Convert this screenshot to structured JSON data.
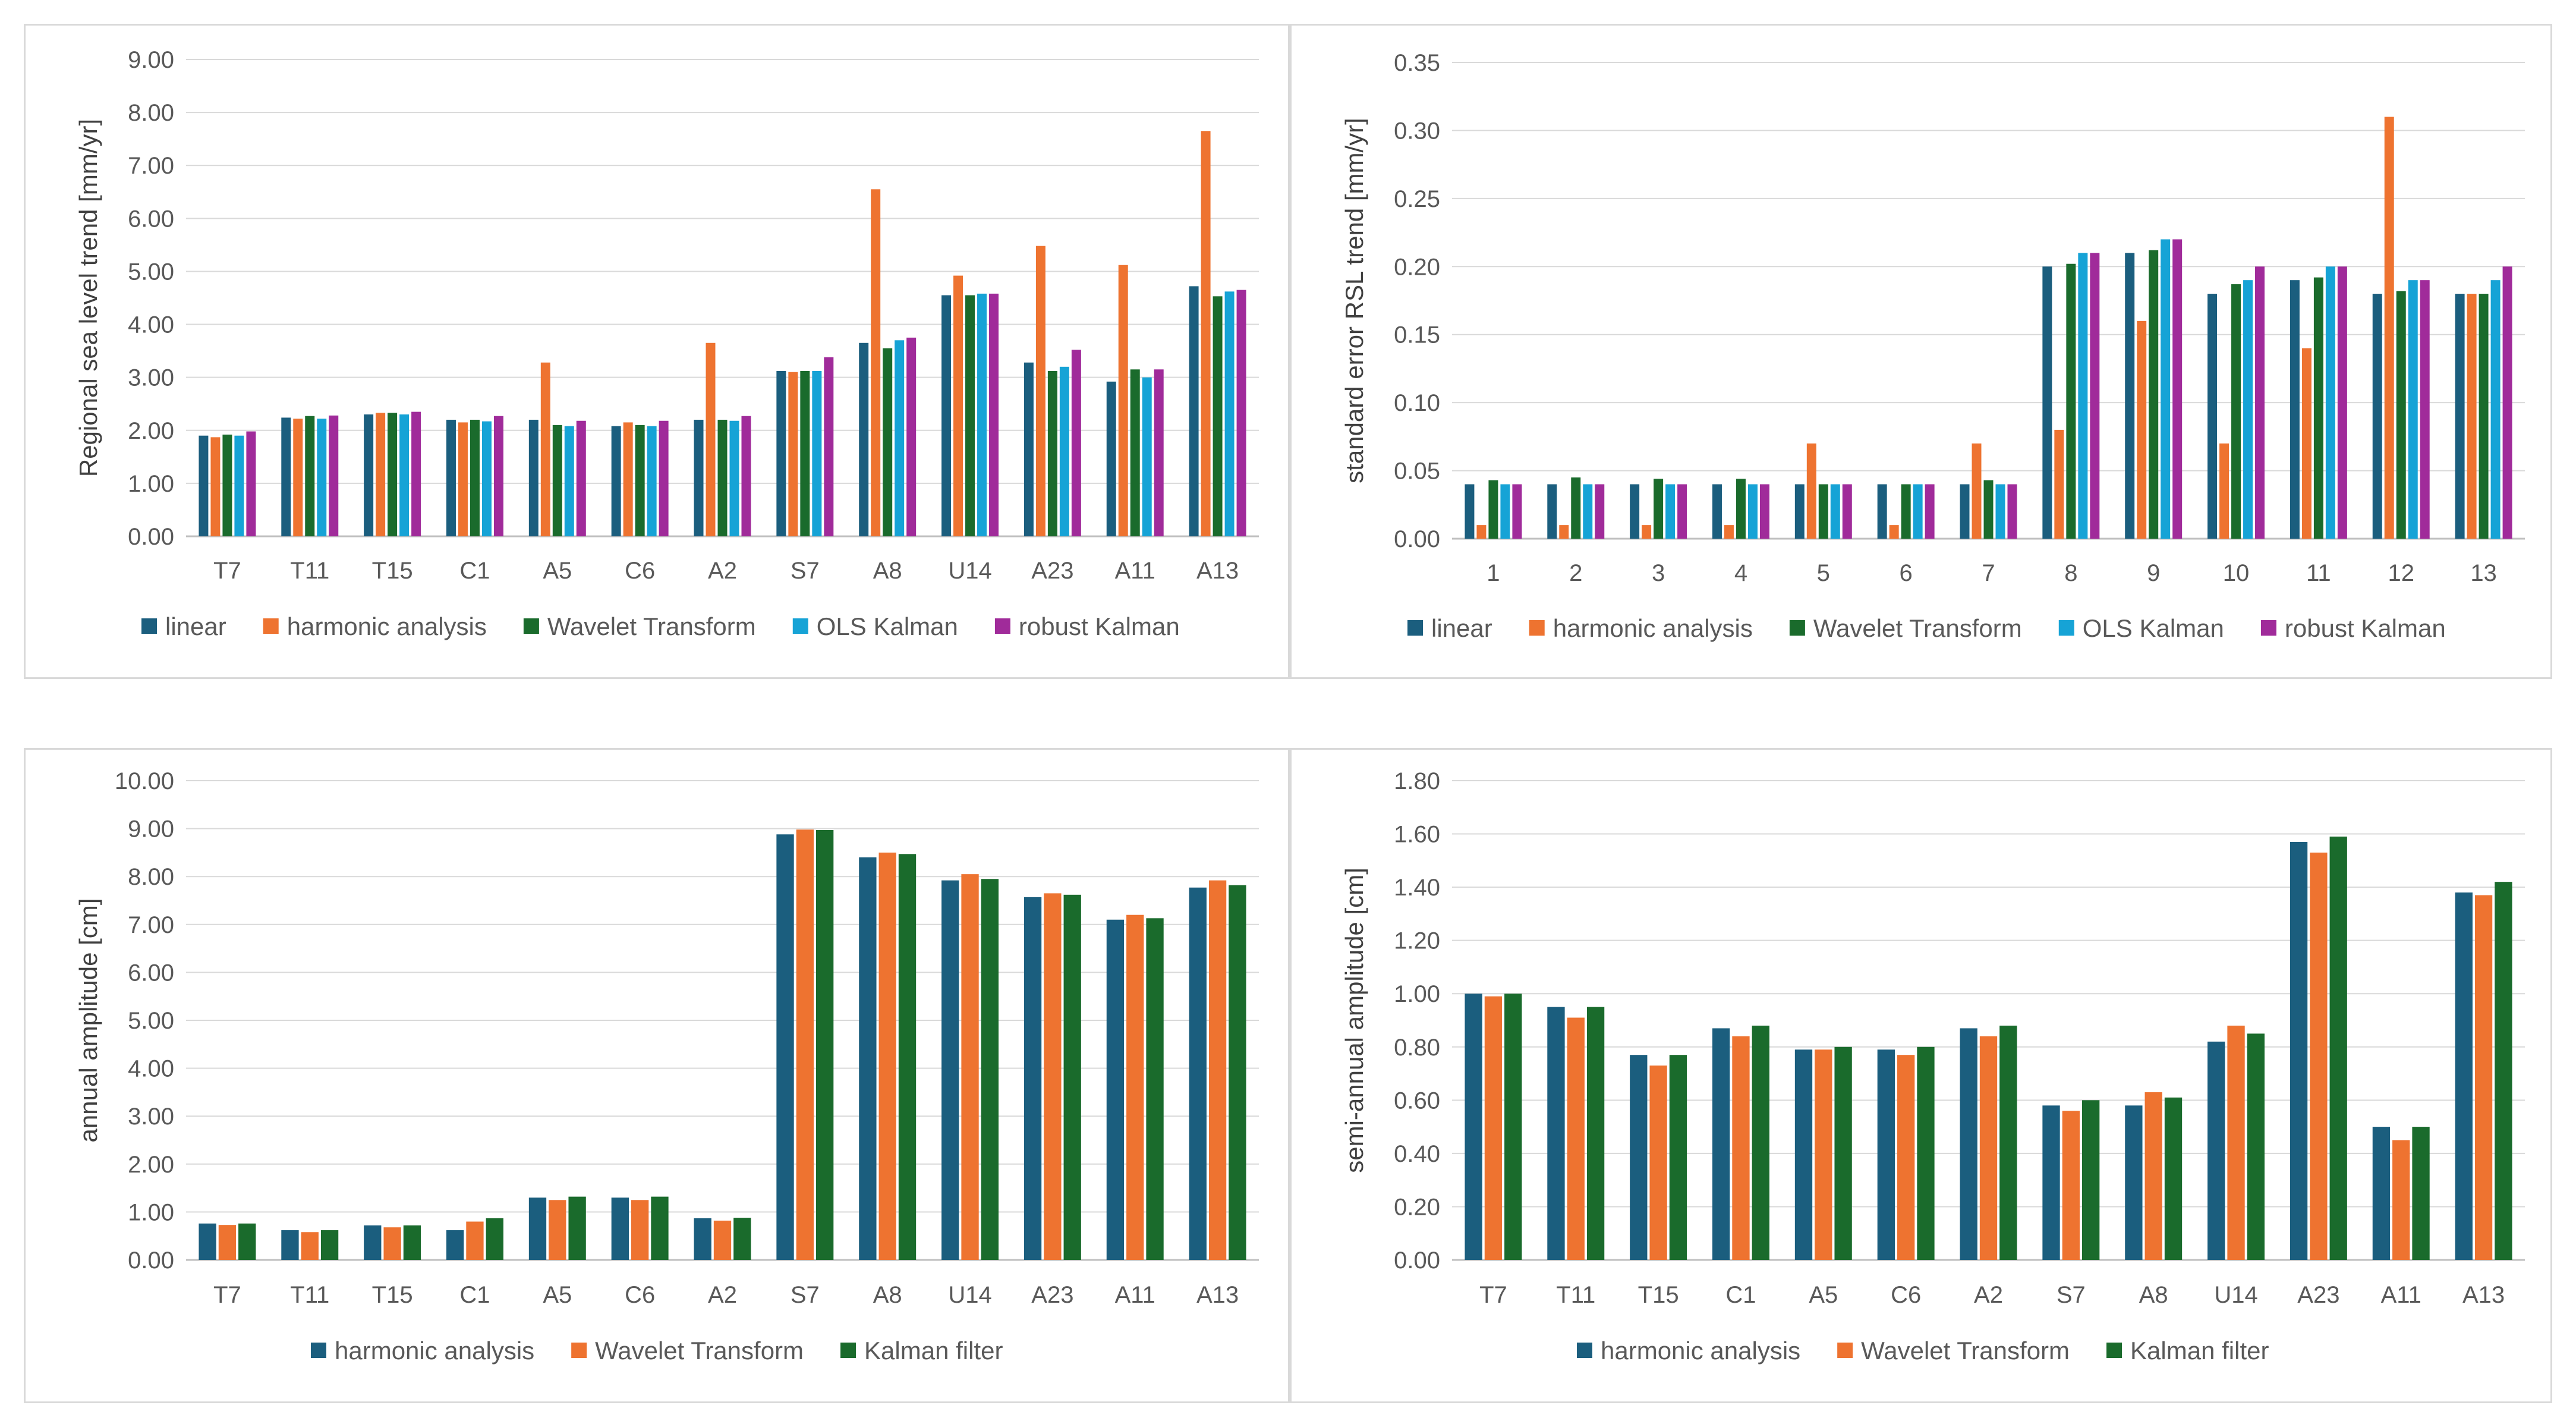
{
  "colors": {
    "linear": "#1b5e7e",
    "harmonic": "#ee7330",
    "wavelet": "#1a6b2c",
    "ols": "#16a3d6",
    "robust": "#a02b9a",
    "grid": "#d9d9d9",
    "axis": "#bfbfbf"
  },
  "chart_data": [
    {
      "type": "bar",
      "ylabel": "Regional sea level trend [mm/yr]",
      "ylim": [
        0,
        9
      ],
      "ystep": 1,
      "ydecimals": 2,
      "categories": [
        "T7",
        "T11",
        "T15",
        "C1",
        "A5",
        "C6",
        "A2",
        "S7",
        "A8",
        "U14",
        "A23",
        "A11",
        "A13"
      ],
      "series": [
        {
          "name": "linear",
          "color": "linear",
          "values": [
            1.9,
            2.24,
            2.3,
            2.2,
            2.2,
            2.08,
            2.2,
            3.12,
            3.65,
            4.55,
            3.28,
            2.92,
            4.72
          ]
        },
        {
          "name": "harmonic analysis",
          "color": "harmonic",
          "values": [
            1.87,
            2.22,
            2.33,
            2.15,
            3.28,
            2.15,
            3.65,
            3.1,
            6.55,
            4.92,
            5.48,
            5.12,
            7.65
          ]
        },
        {
          "name": "Wavelet Transform",
          "color": "wavelet",
          "values": [
            1.92,
            2.27,
            2.33,
            2.2,
            2.1,
            2.1,
            2.2,
            3.12,
            3.55,
            4.55,
            3.12,
            3.15,
            4.53
          ]
        },
        {
          "name": "OLS Kalman",
          "color": "ols",
          "values": [
            1.9,
            2.22,
            2.3,
            2.17,
            2.08,
            2.08,
            2.18,
            3.12,
            3.7,
            4.58,
            3.2,
            3.0,
            4.62
          ]
        },
        {
          "name": "robust Kalman",
          "color": "robust",
          "values": [
            1.98,
            2.28,
            2.35,
            2.27,
            2.18,
            2.18,
            2.27,
            3.38,
            3.75,
            4.58,
            3.52,
            3.15,
            4.65
          ]
        }
      ]
    },
    {
      "type": "bar",
      "ylabel": "standard error RSL trend [mm/yr]",
      "ylim": [
        0,
        0.35
      ],
      "ystep": 0.05,
      "ydecimals": 2,
      "categories": [
        "1",
        "2",
        "3",
        "4",
        "5",
        "6",
        "7",
        "8",
        "9",
        "10",
        "11",
        "12",
        "13"
      ],
      "series": [
        {
          "name": "linear",
          "color": "linear",
          "values": [
            0.04,
            0.04,
            0.04,
            0.04,
            0.04,
            0.04,
            0.04,
            0.2,
            0.21,
            0.18,
            0.19,
            0.18,
            0.18
          ]
        },
        {
          "name": "harmonic analysis",
          "color": "harmonic",
          "values": [
            0.01,
            0.01,
            0.01,
            0.01,
            0.07,
            0.01,
            0.07,
            0.08,
            0.16,
            0.07,
            0.14,
            0.31,
            0.18
          ]
        },
        {
          "name": "Wavelet Transform",
          "color": "wavelet",
          "values": [
            0.043,
            0.045,
            0.044,
            0.044,
            0.04,
            0.04,
            0.043,
            0.202,
            0.212,
            0.187,
            0.192,
            0.182,
            0.18
          ]
        },
        {
          "name": "OLS Kalman",
          "color": "ols",
          "values": [
            0.04,
            0.04,
            0.04,
            0.04,
            0.04,
            0.04,
            0.04,
            0.21,
            0.22,
            0.19,
            0.2,
            0.19,
            0.19
          ]
        },
        {
          "name": "robust Kalman",
          "color": "robust",
          "values": [
            0.04,
            0.04,
            0.04,
            0.04,
            0.04,
            0.04,
            0.04,
            0.21,
            0.22,
            0.2,
            0.2,
            0.19,
            0.2
          ]
        }
      ]
    },
    {
      "type": "bar",
      "ylabel": "annual amplitude [cm]",
      "ylim": [
        0,
        10
      ],
      "ystep": 1,
      "ydecimals": 2,
      "categories": [
        "T7",
        "T11",
        "T15",
        "C1",
        "A5",
        "C6",
        "A2",
        "S7",
        "A8",
        "U14",
        "A23",
        "A11",
        "A13"
      ],
      "series": [
        {
          "name": "harmonic analysis",
          "color": "linear",
          "values": [
            0.76,
            0.62,
            0.72,
            0.62,
            1.3,
            1.3,
            0.87,
            8.88,
            8.4,
            7.92,
            7.57,
            7.1,
            7.77
          ]
        },
        {
          "name": "Wavelet Transform",
          "color": "harmonic",
          "values": [
            0.73,
            0.58,
            0.68,
            0.8,
            1.25,
            1.25,
            0.82,
            8.98,
            8.5,
            8.05,
            7.65,
            7.2,
            7.92
          ]
        },
        {
          "name": "Kalman filter",
          "color": "wavelet",
          "values": [
            0.76,
            0.62,
            0.72,
            0.87,
            1.32,
            1.32,
            0.88,
            8.97,
            8.47,
            7.95,
            7.62,
            7.13,
            7.82
          ]
        }
      ]
    },
    {
      "type": "bar",
      "ylabel": "semi-annual amplitude [cm]",
      "ylim": [
        0,
        1.8
      ],
      "ystep": 0.2,
      "ydecimals": 2,
      "categories": [
        "T7",
        "T11",
        "T15",
        "C1",
        "A5",
        "C6",
        "A2",
        "S7",
        "A8",
        "U14",
        "A23",
        "A11",
        "A13"
      ],
      "series": [
        {
          "name": "harmonic analysis",
          "color": "linear",
          "values": [
            1.0,
            0.95,
            0.77,
            0.87,
            0.79,
            0.79,
            0.87,
            0.58,
            0.58,
            0.82,
            1.57,
            0.5,
            1.38
          ]
        },
        {
          "name": "Wavelet Transform",
          "color": "harmonic",
          "values": [
            0.99,
            0.91,
            0.73,
            0.84,
            0.79,
            0.77,
            0.84,
            0.56,
            0.63,
            0.88,
            1.53,
            0.45,
            1.37
          ]
        },
        {
          "name": "Kalman filter",
          "color": "wavelet",
          "values": [
            1.0,
            0.95,
            0.77,
            0.88,
            0.8,
            0.8,
            0.88,
            0.6,
            0.61,
            0.85,
            1.59,
            0.5,
            1.42
          ]
        }
      ]
    }
  ]
}
